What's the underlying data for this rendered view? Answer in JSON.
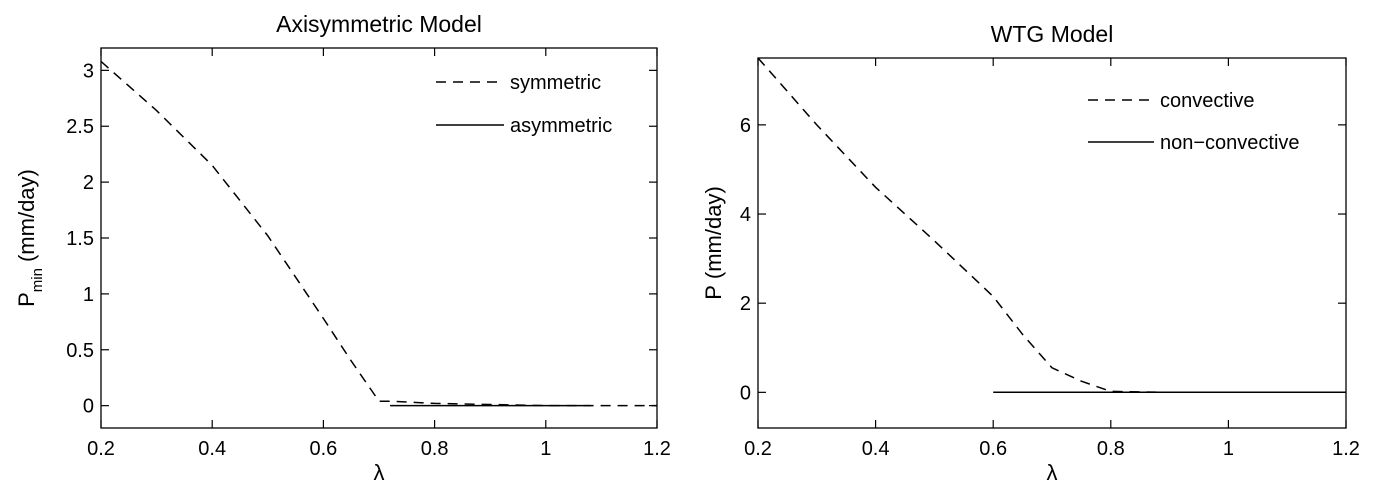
{
  "chart_data": [
    {
      "type": "line",
      "title": "Axisymmetric Model",
      "xlabel": "λ",
      "ylabel": {
        "main": "P",
        "subscript": "min",
        "units": "(mm/day)"
      },
      "xlim": [
        0.2,
        1.2
      ],
      "ylim": [
        -0.2,
        3.2
      ],
      "xticks": [
        0.2,
        0.4,
        0.6,
        0.8,
        1.0,
        1.2
      ],
      "xtick_labels": [
        "0.2",
        "0.4",
        "0.6",
        "0.8",
        "1",
        "1.2"
      ],
      "yticks": [
        0,
        0.5,
        1,
        1.5,
        2,
        2.5,
        3
      ],
      "ytick_labels": [
        "0",
        "0.5",
        "1",
        "1.5",
        "2",
        "2.5",
        "3"
      ],
      "grid": false,
      "legend": "top-right",
      "series": [
        {
          "name": "symmetric",
          "style": "dashed",
          "color": "#000000",
          "x": [
            0.2,
            0.3,
            0.4,
            0.5,
            0.6,
            0.65,
            0.7,
            0.72,
            0.8,
            0.9,
            1.0,
            1.1,
            1.2
          ],
          "y": [
            3.08,
            2.64,
            2.15,
            1.52,
            0.78,
            0.4,
            0.04,
            0.04,
            0.02,
            0.01,
            0.0,
            0.0,
            0.0
          ]
        },
        {
          "name": "asymmetric",
          "style": "solid",
          "color": "#000000",
          "x": [
            0.72,
            0.8,
            0.9,
            1.0,
            1.08
          ],
          "y": [
            0.0,
            0.0,
            0.0,
            0.0,
            0.0
          ]
        }
      ]
    },
    {
      "type": "line",
      "title": "WTG Model",
      "xlabel": "λ",
      "ylabel": {
        "main": "P",
        "subscript": "",
        "units": "(mm/day)"
      },
      "xlim": [
        0.2,
        1.2
      ],
      "ylim": [
        -0.8,
        7.5
      ],
      "xticks": [
        0.2,
        0.4,
        0.6,
        0.8,
        1.0,
        1.2
      ],
      "xtick_labels": [
        "0.2",
        "0.4",
        "0.6",
        "0.8",
        "1",
        "1.2"
      ],
      "yticks": [
        0,
        2,
        4,
        6
      ],
      "ytick_labels": [
        "0",
        "2",
        "4",
        "6"
      ],
      "grid": false,
      "legend": "top-right",
      "series": [
        {
          "name": "convective",
          "style": "dashed",
          "color": "#000000",
          "x": [
            0.2,
            0.3,
            0.4,
            0.5,
            0.6,
            0.65,
            0.7,
            0.75,
            0.8,
            0.9
          ],
          "y": [
            7.5,
            6.0,
            4.6,
            3.4,
            2.15,
            1.3,
            0.55,
            0.25,
            0.02,
            0.0
          ]
        },
        {
          "name": "non−convective",
          "style": "solid",
          "color": "#000000",
          "x": [
            0.6,
            0.8,
            1.0,
            1.2
          ],
          "y": [
            0.0,
            0.0,
            0.0,
            0.0
          ]
        }
      ]
    }
  ]
}
